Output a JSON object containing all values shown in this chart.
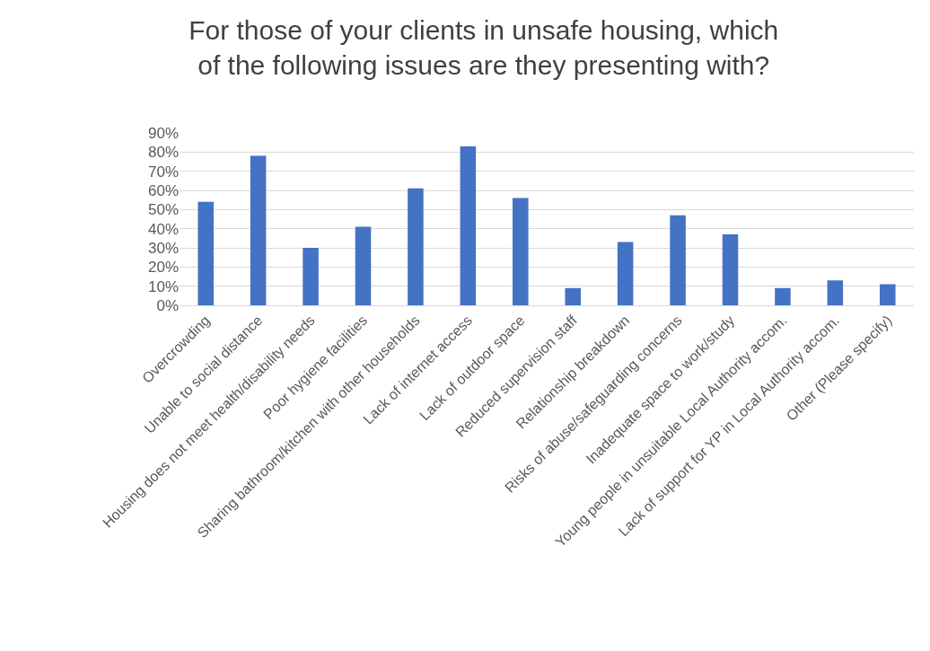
{
  "chart_data": {
    "type": "bar",
    "title": "For those of your clients in unsafe housing, which\nof the following issues are they presenting with?",
    "categories": [
      "Overcrowding",
      "Unable to social distance",
      "Housing does not meet health/disability needs",
      "Poor hygiene facilities",
      "Sharing bathroom/kitchen with other households",
      "Lack of internet access",
      "Lack of outdoor space",
      "Reduced supervision staff",
      "Relationship breakdown",
      "Risks of abuse/safeguarding concerns",
      "Inadequate space to work/study",
      "Young people in unsuitable Local Authority accom.",
      "Lack of support for YP in Local Authority accom.",
      "Other (Please specify)"
    ],
    "values": [
      54,
      78,
      30,
      41,
      61,
      83,
      56,
      9,
      33,
      47,
      37,
      9,
      13,
      11
    ],
    "color": "#4472c4",
    "ylim": [
      0,
      90
    ],
    "yticks": [
      {
        "value": 0,
        "label": "0%"
      },
      {
        "value": 10,
        "label": "10%"
      },
      {
        "value": 20,
        "label": "20%"
      },
      {
        "value": 30,
        "label": "30%"
      },
      {
        "value": 40,
        "label": "40%"
      },
      {
        "value": 50,
        "label": "50%"
      },
      {
        "value": 60,
        "label": "60%"
      },
      {
        "value": 70,
        "label": "70%"
      },
      {
        "value": 80,
        "label": "80%"
      },
      {
        "value": 90,
        "label": "90%"
      }
    ],
    "grid": "y"
  }
}
